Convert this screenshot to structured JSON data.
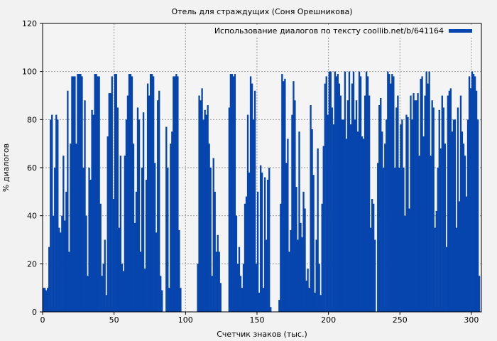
{
  "chart_data": {
    "type": "bar",
    "title": "Отель для страждущих (Соня Орешникова)",
    "xlabel": "Счетчик знаков (тыс.)",
    "ylabel": "% диалогов",
    "xlim": [
      0,
      307
    ],
    "ylim": [
      0,
      120
    ],
    "xticks": [
      0,
      50,
      100,
      150,
      200,
      250,
      300
    ],
    "yticks": [
      0,
      20,
      40,
      60,
      80,
      100,
      120
    ],
    "grid": true,
    "legend_position": "top-right",
    "color": "#0645ad",
    "series": [
      {
        "name": "Использование диалогов по тексту coollib.net/b/641164",
        "x_start": 0,
        "x_step": 1,
        "values": [
          10,
          10,
          9,
          10,
          27,
          80,
          82,
          40,
          60,
          82,
          80,
          35,
          33,
          40,
          65,
          38,
          50,
          92,
          25,
          70,
          98,
          98,
          98,
          70,
          99,
          99,
          99,
          98,
          60,
          88,
          40,
          15,
          60,
          55,
          84,
          82,
          99,
          99,
          98,
          98,
          45,
          15,
          20,
          30,
          7,
          73,
          91,
          91,
          98,
          47,
          99,
          99,
          85,
          35,
          65,
          20,
          17,
          65,
          80,
          90,
          99,
          99,
          98,
          70,
          37,
          50,
          85,
          80,
          25,
          60,
          83,
          18,
          55,
          95,
          90,
          99,
          99,
          98,
          62,
          33,
          88,
          92,
          15,
          9,
          0,
          0,
          77,
          60,
          10,
          70,
          75,
          98,
          98,
          99,
          98,
          34,
          10,
          0,
          0,
          0,
          0,
          0,
          0,
          0,
          0,
          0,
          0,
          0,
          20,
          90,
          88,
          93,
          80,
          84,
          82,
          86,
          70,
          60,
          15,
          64,
          50,
          25,
          32,
          25,
          12,
          0,
          0,
          0,
          0,
          0,
          85,
          99,
          99,
          98,
          99,
          40,
          20,
          27,
          15,
          10,
          20,
          45,
          48,
          82,
          58,
          98,
          95,
          80,
          92,
          20,
          50,
          8,
          61,
          58,
          10,
          56,
          30,
          55,
          60,
          2,
          0,
          0,
          0,
          0,
          0,
          5,
          45,
          99,
          96,
          97,
          62,
          72,
          25,
          34,
          82,
          96,
          88,
          52,
          30,
          75,
          37,
          31,
          50,
          43,
          13,
          18,
          10,
          86,
          76,
          57,
          8,
          30,
          68,
          20,
          7,
          45,
          69,
          95,
          98,
          82,
          100,
          100,
          85,
          78,
          100,
          98,
          99,
          95,
          90,
          80,
          80,
          100,
          72,
          88,
          100,
          78,
          95,
          100,
          80,
          88,
          75,
          100,
          98,
          73,
          72,
          90,
          100,
          98,
          90,
          35,
          47,
          45,
          30,
          0,
          62,
          86,
          89,
          75,
          60,
          70,
          80,
          100,
          99,
          95,
          99,
          98,
          60,
          85,
          90,
          60,
          78,
          80,
          60,
          40,
          82,
          81,
          43,
          90,
          80,
          91,
          88,
          88,
          91,
          65,
          97,
          98,
          73,
          90,
          100,
          95,
          100,
          65,
          88,
          85,
          35,
          42,
          60,
          84,
          68,
          90,
          85,
          70,
          27,
          90,
          92,
          93,
          75,
          80,
          80,
          35,
          85,
          46,
          90,
          75,
          70,
          65,
          48,
          80,
          98,
          93,
          100,
          99,
          98,
          92,
          80,
          15
        ]
      }
    ]
  }
}
